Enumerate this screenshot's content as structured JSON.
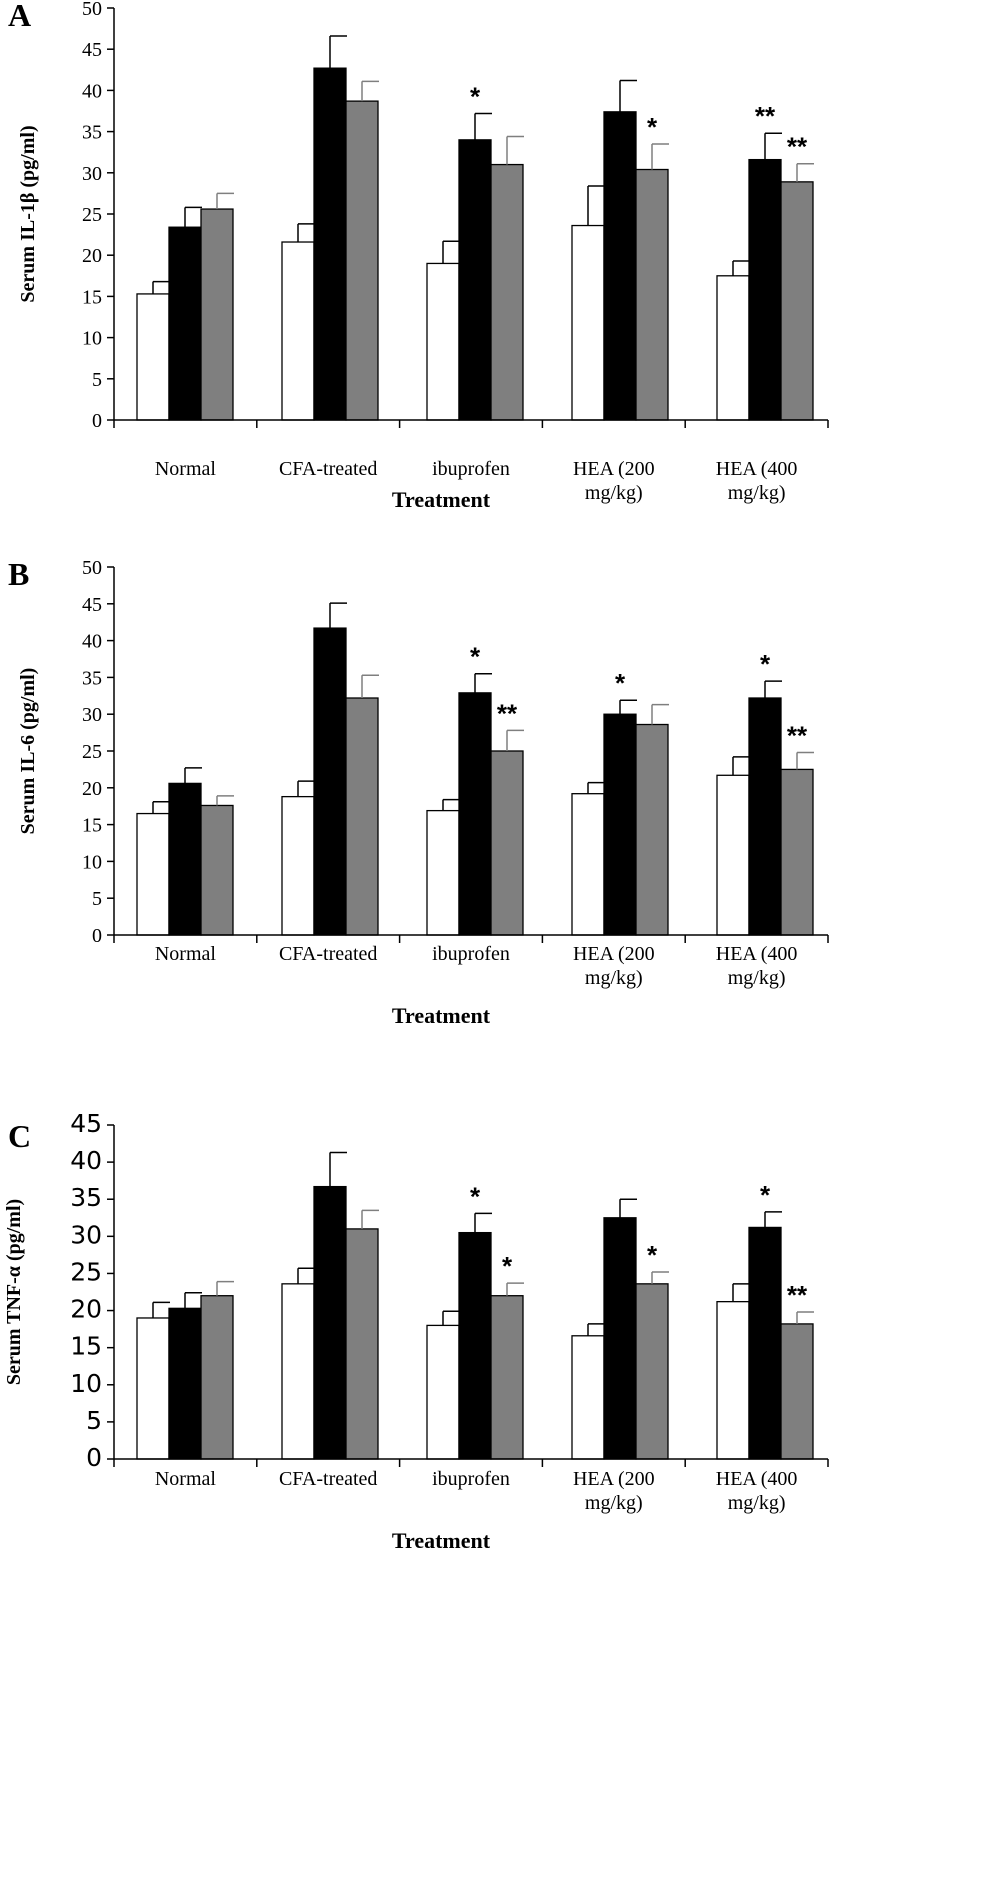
{
  "colors": {
    "normal_bar": "#ffffff",
    "black_bar": "#000000",
    "gray_bar": "#7f7f7f"
  },
  "chart_data": [
    {
      "type": "bar",
      "panel": "A",
      "ylabel": "Serum IL-1β (pg/ml)",
      "xlabel": "Treatment",
      "ylim": [
        0,
        50
      ],
      "yticks": [
        0,
        5,
        10,
        15,
        20,
        25,
        30,
        35,
        40,
        45,
        50
      ],
      "categories": [
        "Normal",
        "CFA-treated",
        "ibuprofen",
        "HEA (200\nmg/kg)",
        "HEA (400\nmg/kg)"
      ],
      "series": [
        {
          "color": "#ffffff",
          "values": [
            15.3,
            21.6,
            19.0,
            23.6,
            17.5
          ],
          "errors": [
            1.5,
            2.2,
            2.7,
            4.8,
            1.8
          ],
          "sig": [
            "",
            "",
            "",
            "",
            ""
          ]
        },
        {
          "color": "#000000",
          "values": [
            23.4,
            42.7,
            34.0,
            37.4,
            31.6
          ],
          "errors": [
            2.4,
            3.9,
            3.2,
            3.8,
            3.2
          ],
          "sig": [
            "",
            "",
            "*",
            "",
            "**"
          ]
        },
        {
          "color": "#7f7f7f",
          "values": [
            25.6,
            38.7,
            31.0,
            30.4,
            28.9
          ],
          "errors": [
            1.9,
            2.4,
            3.4,
            3.1,
            2.2
          ],
          "sig": [
            "",
            "",
            "",
            "*",
            "**"
          ]
        }
      ]
    },
    {
      "type": "bar",
      "panel": "B",
      "ylabel": "Serum IL-6 (pg/ml)",
      "xlabel": "Treatment",
      "ylim": [
        0,
        50
      ],
      "yticks": [
        0,
        5,
        10,
        15,
        20,
        25,
        30,
        35,
        40,
        45,
        50
      ],
      "categories": [
        "Normal",
        "CFA-treated",
        "ibuprofen",
        "HEA (200\nmg/kg)",
        "HEA (400\nmg/kg)"
      ],
      "series": [
        {
          "color": "#ffffff",
          "values": [
            16.5,
            18.8,
            16.9,
            19.2,
            21.7
          ],
          "errors": [
            1.6,
            2.1,
            1.5,
            1.5,
            2.5
          ],
          "sig": [
            "",
            "",
            "",
            "",
            ""
          ]
        },
        {
          "color": "#000000",
          "values": [
            20.6,
            41.7,
            32.9,
            30.0,
            32.2
          ],
          "errors": [
            2.1,
            3.4,
            2.6,
            1.9,
            2.3
          ],
          "sig": [
            "",
            "",
            "*",
            "*",
            "*"
          ]
        },
        {
          "color": "#7f7f7f",
          "values": [
            17.6,
            32.2,
            25.0,
            28.6,
            22.5
          ],
          "errors": [
            1.3,
            3.1,
            2.8,
            2.7,
            2.3
          ],
          "sig": [
            "",
            "",
            "**",
            "",
            "**"
          ]
        }
      ]
    },
    {
      "type": "bar",
      "panel": "C",
      "ylabel": "Serum TNF-α (pg/ml)",
      "xlabel": "Treatment",
      "ylim": [
        0,
        45
      ],
      "yticks": [
        0,
        5,
        10,
        15,
        20,
        25,
        30,
        35,
        40,
        45
      ],
      "categories": [
        "Normal",
        "CFA-treated",
        "ibuprofen",
        "HEA (200\nmg/kg)",
        "HEA (400\nmg/kg)"
      ],
      "series": [
        {
          "color": "#ffffff",
          "values": [
            19.0,
            23.6,
            18.0,
            16.6,
            21.2
          ],
          "errors": [
            2.1,
            2.1,
            1.9,
            1.6,
            2.4
          ],
          "sig": [
            "",
            "",
            "",
            "",
            ""
          ]
        },
        {
          "color": "#000000",
          "values": [
            20.3,
            36.7,
            30.5,
            32.5,
            31.2
          ],
          "errors": [
            2.1,
            4.6,
            2.6,
            2.5,
            2.1
          ],
          "sig": [
            "",
            "",
            "*",
            "",
            "*"
          ]
        },
        {
          "color": "#7f7f7f",
          "values": [
            22.0,
            31.0,
            22.0,
            23.6,
            18.2
          ],
          "errors": [
            1.9,
            2.5,
            1.7,
            1.6,
            1.6
          ],
          "sig": [
            "",
            "",
            "*",
            "*",
            "**"
          ]
        }
      ]
    }
  ]
}
